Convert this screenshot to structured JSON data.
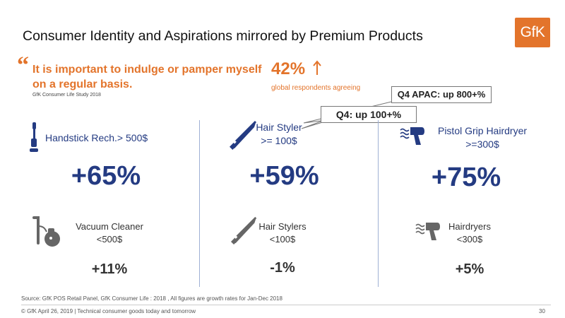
{
  "title": "Consumer Identity and Aspirations mirrored by Premium Products",
  "logo": "GfK",
  "quote": {
    "mark": "“",
    "text": "It is important to indulge or pamper myself on a regular basis.",
    "source": "GfK Consumer Life Study 2018"
  },
  "stat": {
    "value": "42%",
    "label": "global respondents agreeing"
  },
  "callouts": {
    "apac": "Q4 APAC: up 800+%",
    "q4": "Q4: up 100+%"
  },
  "columns": [
    {
      "top_label_lines": [
        "Handstick Rech.> 500$"
      ],
      "top_value": "+65%",
      "bottom_label_lines": [
        "Vacuum Cleaner",
        "<500$"
      ],
      "bottom_value": "+11%",
      "icon_top": "handstick-vacuum-icon",
      "icon_bottom": "vacuum-cleaner-icon"
    },
    {
      "top_label_lines": [
        "Hair Styler",
        ">= 100$"
      ],
      "top_value": "+59%",
      "bottom_label_lines": [
        "Hair Stylers",
        "<100$"
      ],
      "bottom_value": "-1%",
      "icon_top": "hair-styler-icon",
      "icon_bottom": "hair-styler-icon"
    },
    {
      "top_label_lines": [
        "Pistol Grip Hairdryer",
        ">=300$"
      ],
      "top_value": "+75%",
      "bottom_label_lines": [
        "Hairdryers",
        "<300$"
      ],
      "bottom_value": "+5%",
      "icon_top": "hairdryer-icon",
      "icon_bottom": "hairdryer-icon"
    }
  ],
  "footnote": "Source: GfK POS Retail Panel, GfK Consumer Life : 2018 , All figures are growth rates for Jan-Dec 2018",
  "footer": "© GfK April 26, 2019 | Technical consumer goods today and tomorrow",
  "page_number": "30",
  "colors": {
    "accent": "#e3742b",
    "navy": "#243b82",
    "gray": "#333333"
  }
}
